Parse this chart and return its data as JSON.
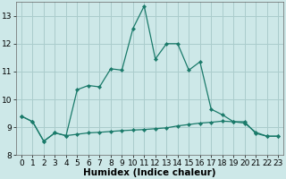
{
  "xlabel": "Humidex (Indice chaleur)",
  "background_color": "#cde8e8",
  "grid_color": "#aacccc",
  "line_color": "#1a7a6a",
  "x_values": [
    0,
    1,
    2,
    3,
    4,
    5,
    6,
    7,
    8,
    9,
    10,
    11,
    12,
    13,
    14,
    15,
    16,
    17,
    18,
    19,
    20,
    21,
    22,
    23
  ],
  "line1_y": [
    9.4,
    9.2,
    8.5,
    8.8,
    8.7,
    8.75,
    8.8,
    8.82,
    8.85,
    8.88,
    8.9,
    8.92,
    8.95,
    8.98,
    9.05,
    9.1,
    9.15,
    9.18,
    9.22,
    9.2,
    9.15,
    8.82,
    8.68,
    8.68
  ],
  "line2_y": [
    9.4,
    9.2,
    8.5,
    8.8,
    8.7,
    10.35,
    10.5,
    10.45,
    11.1,
    11.05,
    12.55,
    13.35,
    11.45,
    12.0,
    12.0,
    11.05,
    11.35,
    9.65,
    9.45,
    9.2,
    9.2,
    8.78,
    8.68,
    8.68
  ],
  "ylim": [
    8.0,
    13.5
  ],
  "xlim": [
    -0.5,
    23.5
  ],
  "yticks": [
    8,
    9,
    10,
    11,
    12,
    13
  ],
  "xticks": [
    0,
    1,
    2,
    3,
    4,
    5,
    6,
    7,
    8,
    9,
    10,
    11,
    12,
    13,
    14,
    15,
    16,
    17,
    18,
    19,
    20,
    21,
    22,
    23
  ],
  "tick_fontsize": 6.5,
  "xlabel_fontsize": 7.5,
  "marker": "D",
  "markersize": 2.2,
  "linewidth": 0.9
}
